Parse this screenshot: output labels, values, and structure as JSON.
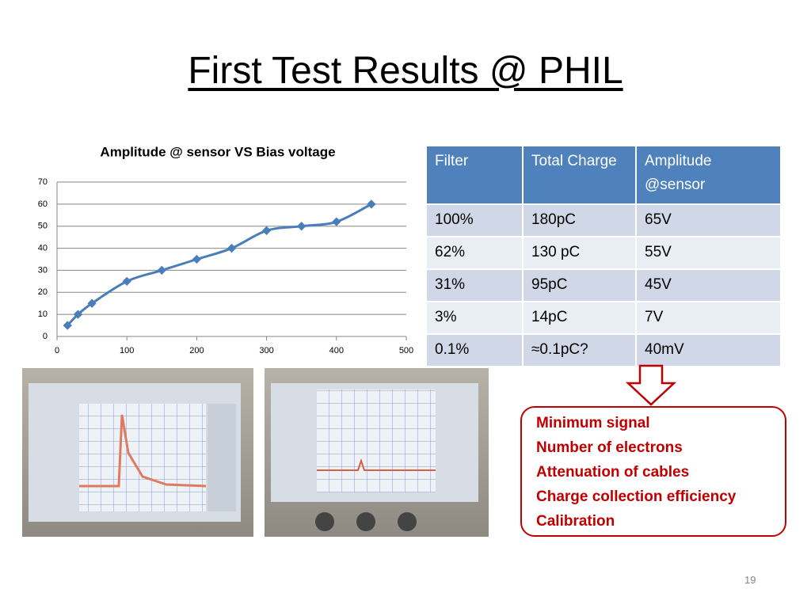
{
  "title": "First Test Results @ PHIL",
  "chart_data": {
    "type": "line",
    "title": "Amplitude @ sensor  VS Bias voltage",
    "x": [
      15,
      30,
      50,
      100,
      150,
      200,
      250,
      300,
      350,
      400,
      450
    ],
    "values": [
      5,
      10,
      15,
      25,
      30,
      35,
      40,
      48,
      50,
      52,
      60
    ],
    "color": "#4a7ebb",
    "xlim": [
      0,
      500
    ],
    "xticks": [
      0,
      100,
      200,
      300,
      400,
      500
    ],
    "ylim": [
      0,
      70
    ],
    "yticks": [
      0,
      10,
      20,
      30,
      40,
      50,
      60,
      70
    ],
    "grid": true
  },
  "table": {
    "header": [
      "Filter",
      "Total Charge",
      "Amplitude @sensor"
    ],
    "rows": [
      [
        "100%",
        "180pC",
        "65V"
      ],
      [
        "62%",
        "130 pC",
        "55V"
      ],
      [
        "31%",
        "95pC",
        "45V"
      ],
      [
        "3%",
        "14pC",
        "7V"
      ],
      [
        "0.1%",
        "≈0.1pC?",
        "40mV"
      ]
    ]
  },
  "callout": [
    "Minimum signal",
    "Number of electrons",
    "Attenuation of cables",
    "Charge collection efficiency",
    "Calibration"
  ],
  "page_number": "19"
}
